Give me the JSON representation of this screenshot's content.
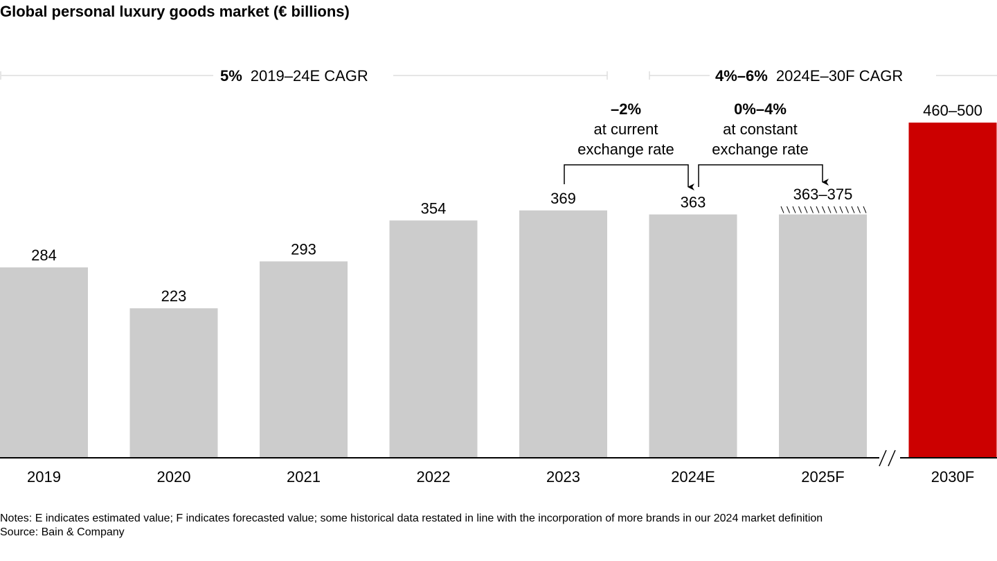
{
  "title": "Global personal luxury goods market (€ billions)",
  "chart_data": {
    "type": "bar",
    "title": "Global personal luxury goods market (€ billions)",
    "categories": [
      "2019",
      "2020",
      "2021",
      "2022",
      "2023",
      "2024E",
      "2025F",
      "2030F"
    ],
    "values": [
      284,
      223,
      293,
      354,
      369,
      363,
      [
        363,
        375
      ],
      [
        460,
        500
      ]
    ],
    "data_labels": [
      "284",
      "223",
      "293",
      "354",
      "369",
      "363",
      "363–375",
      "460–500"
    ],
    "ylim": [
      0,
      500
    ],
    "grid": false,
    "axis_break_before": "2030F",
    "colors": {
      "bar": "#cccccc",
      "highlight": "#cc0000",
      "cagr_line": "#dddddd"
    },
    "annotations": {
      "cagr_left": {
        "bold": "5%",
        "text": "2019–24E CAGR"
      },
      "cagr_right": {
        "bold": "4%–6%",
        "text": "2024E–30F CAGR"
      },
      "change_current": {
        "bold": "–2%",
        "line1": "at current",
        "line2": "exchange rate"
      },
      "change_constant": {
        "bold": "0%–4%",
        "line1": "at constant",
        "line2": "exchange rate"
      }
    }
  },
  "notes": "Notes: E indicates estimated value; F indicates forecasted value; some historical data restated in line with the incorporation of more brands in our 2024 market definition",
  "source": "Source: Bain & Company"
}
